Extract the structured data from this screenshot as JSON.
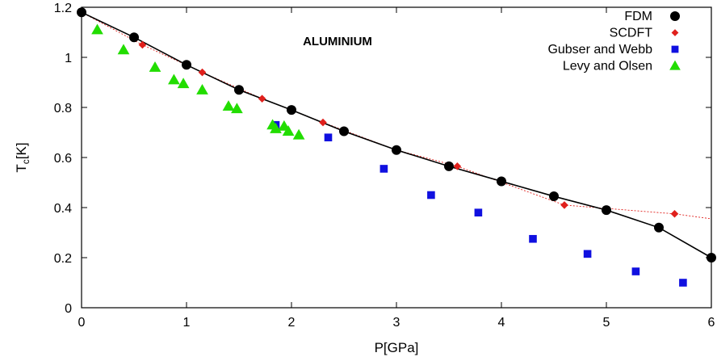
{
  "chart_data": {
    "type": "scatter",
    "title": "",
    "annotation": "ALUMINIUM",
    "xlabel": "P[GPa]",
    "ylabel_main": "T",
    "ylabel_sub": "c",
    "ylabel_unit": "[K]",
    "xlim": [
      0,
      6
    ],
    "ylim": [
      0,
      1.2
    ],
    "xticks": [
      "0",
      "1",
      "2",
      "3",
      "4",
      "5",
      "6"
    ],
    "yticks": [
      "0",
      "0.2",
      "0.4",
      "0.6",
      "0.8",
      "1",
      "1.2"
    ],
    "grid": false,
    "legend_position": "top-right",
    "series": [
      {
        "name": "FDM",
        "marker": "circle",
        "color": "#000000",
        "line": "solid",
        "x": [
          0,
          0.5,
          1.0,
          1.5,
          2.0,
          2.5,
          3.0,
          3.5,
          4.0,
          4.5,
          5.0,
          5.5,
          6.0
        ],
        "y": [
          1.18,
          1.08,
          0.97,
          0.87,
          0.79,
          0.705,
          0.63,
          0.565,
          0.505,
          0.445,
          0.39,
          0.32,
          0.2
        ]
      },
      {
        "name": "SCDFT",
        "marker": "diamond",
        "color": "#e0201c",
        "line": "dotted",
        "x": [
          0,
          0.58,
          1.15,
          1.72,
          2.3,
          3.0,
          3.58,
          4.6,
          5.65,
          6.0
        ],
        "y": [
          1.18,
          1.05,
          0.94,
          0.835,
          0.74,
          0.63,
          0.565,
          0.41,
          0.375,
          0.355
        ]
      },
      {
        "name": "Gubser and Webb",
        "marker": "square",
        "color": "#1010e0",
        "line": "none",
        "x": [
          1.85,
          2.35,
          2.88,
          3.33,
          3.78,
          4.3,
          4.82,
          5.28,
          5.73
        ],
        "y": [
          0.73,
          0.68,
          0.555,
          0.45,
          0.38,
          0.275,
          0.215,
          0.145,
          0.1
        ]
      },
      {
        "name": "Levy and Olsen",
        "marker": "triangle",
        "color": "#22dd00",
        "line": "none",
        "x": [
          0.15,
          0.4,
          0.7,
          0.88,
          0.97,
          1.15,
          1.4,
          1.48,
          1.82,
          1.85,
          1.93,
          1.97,
          2.07
        ],
        "y": [
          1.11,
          1.03,
          0.96,
          0.91,
          0.895,
          0.87,
          0.805,
          0.795,
          0.73,
          0.715,
          0.725,
          0.705,
          0.69
        ]
      }
    ]
  }
}
